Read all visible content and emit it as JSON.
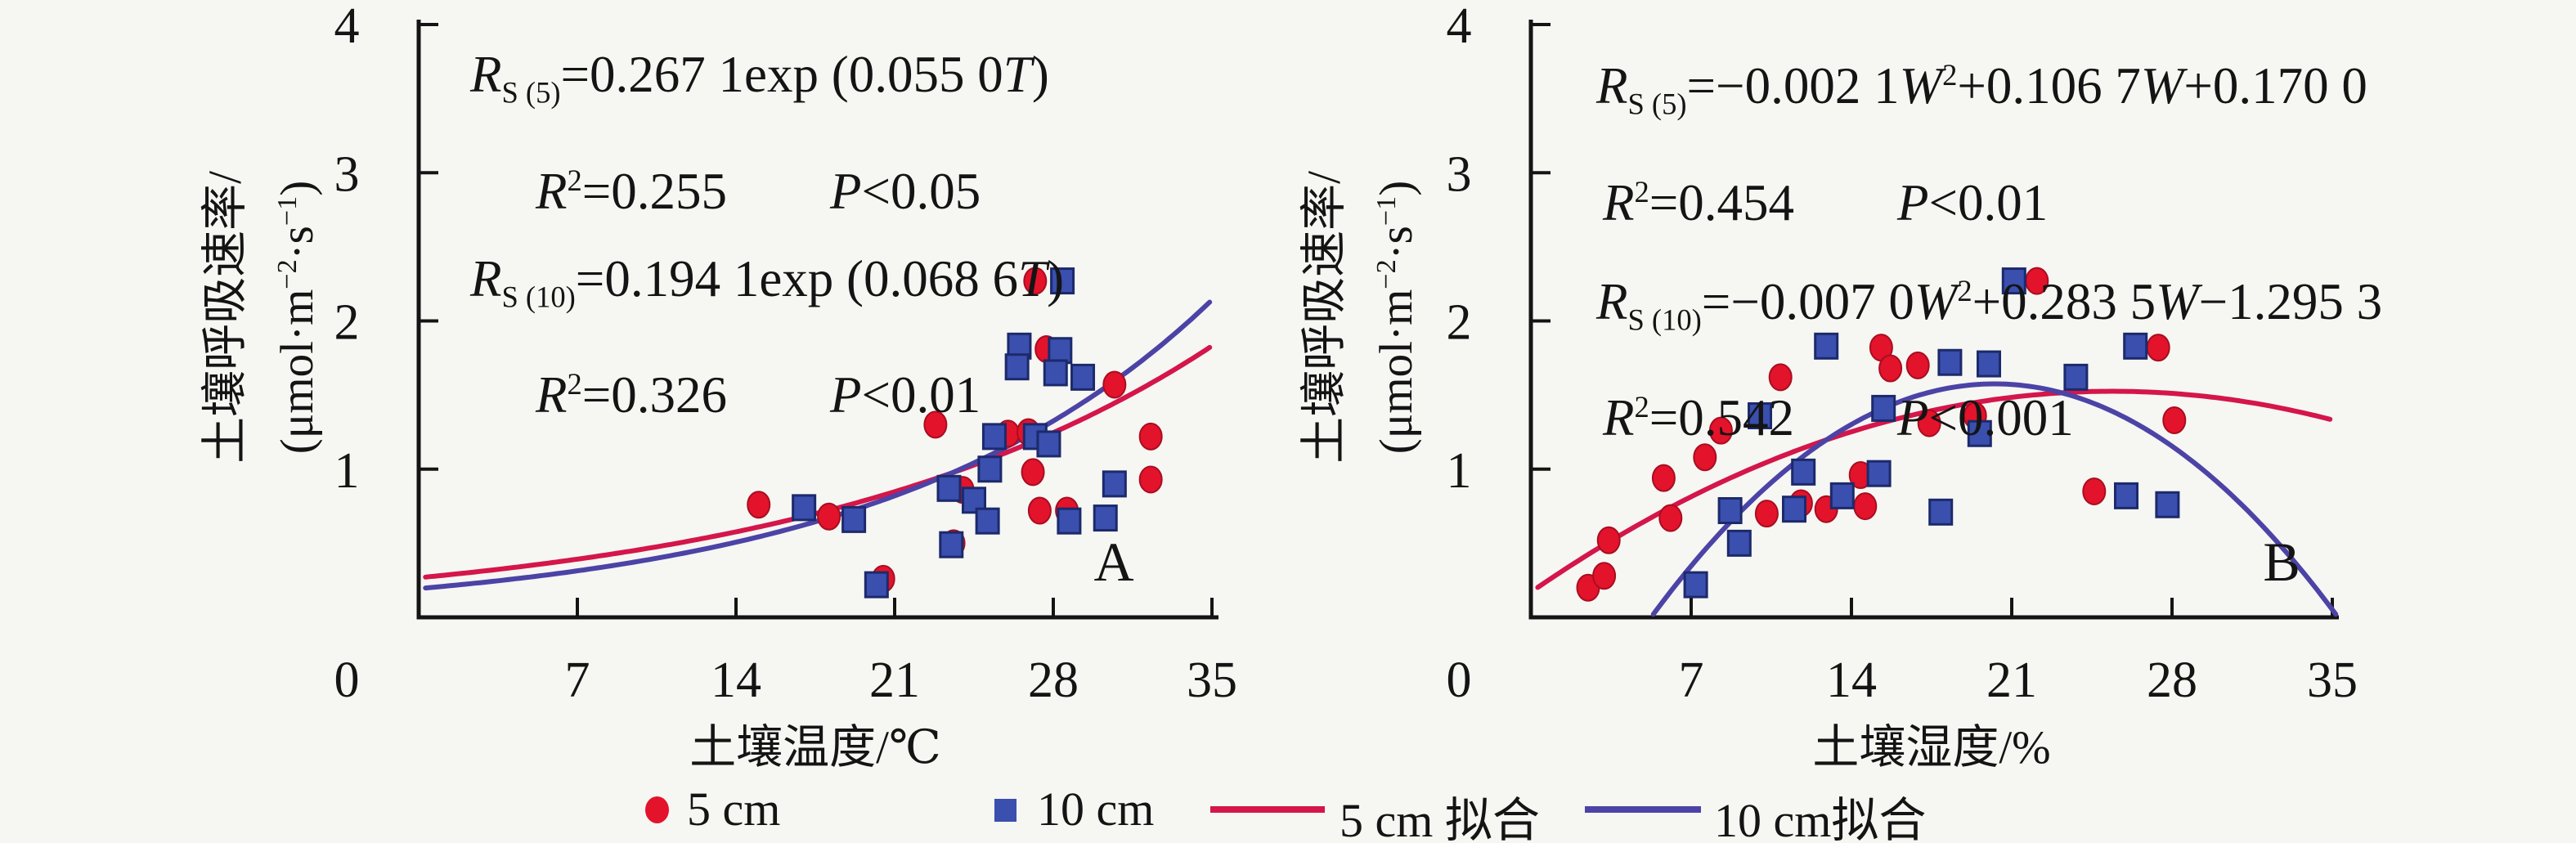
{
  "figure": {
    "background": "#f6f6f3",
    "description": "Two-panel scatter figure: soil respiration rate vs soil temperature (A) and soil moisture (B), with fitted curves for 5 cm and 10 cm depths"
  },
  "colors": {
    "red_marker": "#e3132b",
    "red_marker_edge": "#a80e20",
    "blue_marker": "#3a4fae",
    "blue_marker_edge": "#1c2a6b",
    "red_fit_line": "#d4164a",
    "blue_fit_line": "#4c43a6",
    "axis": "#141414"
  },
  "legend": {
    "items": [
      {
        "label": "5 cm",
        "marker": "circle",
        "color_key": "red_marker"
      },
      {
        "label": "10 cm",
        "marker": "square",
        "color_key": "blue_marker"
      },
      {
        "label": "5 cm 拟合",
        "marker": "line",
        "color_key": "red_fit_line"
      },
      {
        "label": "10 cm拟合",
        "marker": "line",
        "color_key": "blue_fit_line"
      }
    ]
  },
  "chart_data": [
    {
      "panel_label": "A",
      "type": "scatter",
      "xlabel": "土壤温度/℃",
      "ylabel_line1": "土壤呼吸速率/",
      "ylabel_line2": "(μmol·m^−2^·s^−1^)",
      "xlim": [
        0,
        35
      ],
      "ylim": [
        0,
        4
      ],
      "x_ticks": [
        0,
        7,
        14,
        21,
        28,
        35
      ],
      "y_ticks": [
        1,
        2,
        3,
        4
      ],
      "grid": false,
      "equations": [
        "*R*~S (5)~=0.267 1exp (0.055 0*T*)",
        "*R*^2^=0.255  *P*<0.05",
        "*R*~S (10)~=0.194 1exp (0.068 6*T*)",
        "*R*^2^=0.326  *P*<0.01"
      ],
      "series": [
        {
          "name": "5 cm",
          "marker": "circle",
          "points": [
            [
              15.0,
              0.76
            ],
            [
              18.1,
              0.68
            ],
            [
              20.5,
              0.26
            ],
            [
              22.8,
              1.3
            ],
            [
              23.6,
              0.5
            ],
            [
              24.0,
              0.86
            ],
            [
              26.0,
              1.24
            ],
            [
              26.9,
              1.25
            ],
            [
              27.1,
              0.98
            ],
            [
              27.2,
              2.27
            ],
            [
              27.7,
              1.81
            ],
            [
              27.4,
              0.72
            ],
            [
              28.6,
              0.72
            ],
            [
              30.7,
              1.57
            ],
            [
              32.3,
              1.22
            ],
            [
              32.3,
              0.93
            ]
          ]
        },
        {
          "name": "10 cm",
          "marker": "square",
          "points": [
            [
              17.0,
              0.74
            ],
            [
              19.2,
              0.66
            ],
            [
              20.2,
              0.22
            ],
            [
              23.4,
              0.87
            ],
            [
              23.5,
              0.49
            ],
            [
              24.5,
              0.79
            ],
            [
              25.2,
              1.0
            ],
            [
              25.1,
              0.65
            ],
            [
              25.4,
              1.22
            ],
            [
              26.5,
              1.83
            ],
            [
              26.4,
              1.69
            ],
            [
              27.2,
              1.22
            ],
            [
              27.8,
              1.17
            ],
            [
              28.3,
              1.8
            ],
            [
              28.1,
              1.65
            ],
            [
              29.3,
              1.62
            ],
            [
              28.4,
              2.27
            ],
            [
              28.7,
              0.65
            ],
            [
              30.3,
              0.67
            ],
            [
              30.7,
              0.9
            ]
          ]
        }
      ],
      "fits": [
        {
          "name": "5 cm 拟合",
          "kind": "exp",
          "a": 0.2671,
          "b": 0.055,
          "x_range": [
            0.3,
            35
          ],
          "color_key": "red_fit_line",
          "model": "R=0.2671·exp(0.0550·T)"
        },
        {
          "name": "10 cm 拟合",
          "kind": "exp",
          "a": 0.1941,
          "b": 0.0686,
          "x_range": [
            0.3,
            35
          ],
          "color_key": "blue_fit_line",
          "model": "R=0.1941·exp(0.0686·T)"
        }
      ]
    },
    {
      "panel_label": "B",
      "type": "scatter",
      "xlabel": "土壤湿度/%",
      "ylabel_line1": "土壤呼吸速率/",
      "ylabel_line2": "(μmol·m^−2^·s^−1^)",
      "xlim": [
        0,
        35
      ],
      "ylim": [
        0,
        4
      ],
      "x_ticks": [
        0,
        7,
        14,
        21,
        28,
        35
      ],
      "y_ticks": [
        1,
        2,
        3,
        4
      ],
      "grid": false,
      "equations": [
        "*R*~S (5)~=−0.002 1*W*^2^+0.106 7*W*+0.170 0",
        "*R*^2^=0.454  *P*<0.01",
        "*R*~S (10)~=−0.007 0*W*^2^+0.283 5*W*−1.295 3",
        "*R*^2^=0.542  *P*<0.001"
      ],
      "series": [
        {
          "name": "5 cm",
          "marker": "circle",
          "points": [
            [
              2.5,
              0.2
            ],
            [
              3.2,
              0.28
            ],
            [
              3.4,
              0.52
            ],
            [
              5.8,
              0.94
            ],
            [
              6.1,
              0.67
            ],
            [
              7.6,
              1.08
            ],
            [
              8.3,
              1.26
            ],
            [
              10.3,
              0.7
            ],
            [
              10.9,
              1.62
            ],
            [
              11.8,
              0.77
            ],
            [
              12.9,
              0.73
            ],
            [
              14.4,
              0.96
            ],
            [
              14.6,
              0.75
            ],
            [
              15.3,
              1.82
            ],
            [
              15.7,
              1.68
            ],
            [
              16.9,
              1.7
            ],
            [
              17.4,
              1.31
            ],
            [
              19.4,
              1.36
            ],
            [
              22.1,
              2.27
            ],
            [
              24.6,
              0.85
            ],
            [
              27.4,
              1.82
            ],
            [
              28.1,
              1.33
            ]
          ]
        },
        {
          "name": "10 cm",
          "marker": "square",
          "points": [
            [
              7.2,
              0.22
            ],
            [
              8.7,
              0.72
            ],
            [
              9.1,
              0.5
            ],
            [
              10.0,
              1.36
            ],
            [
              11.5,
              0.73
            ],
            [
              11.9,
              0.98
            ],
            [
              12.9,
              1.83
            ],
            [
              13.6,
              0.82
            ],
            [
              15.2,
              0.97
            ],
            [
              15.4,
              1.41
            ],
            [
              17.9,
              0.71
            ],
            [
              18.3,
              1.72
            ],
            [
              19.6,
              1.24
            ],
            [
              20.0,
              1.71
            ],
            [
              21.1,
              2.27
            ],
            [
              23.8,
              1.62
            ],
            [
              26.0,
              0.82
            ],
            [
              26.4,
              1.83
            ],
            [
              27.8,
              0.76
            ]
          ]
        }
      ],
      "fits": [
        {
          "name": "5 cm 拟合",
          "kind": "quad",
          "a": -0.0021,
          "b": 0.1067,
          "c": 0.17,
          "x_range": [
            0.3,
            35
          ],
          "color_key": "red_fit_line",
          "model": "R=−0.0021·W²+0.1067·W+0.1700"
        },
        {
          "name": "10 cm 拟合",
          "kind": "quad",
          "a": -0.007,
          "b": 0.2835,
          "c": -1.2953,
          "x_range": [
            5.35,
            35.2
          ],
          "color_key": "blue_fit_line",
          "model": "R=−0.0070·W²+0.2835·W−1.2953"
        }
      ]
    }
  ]
}
